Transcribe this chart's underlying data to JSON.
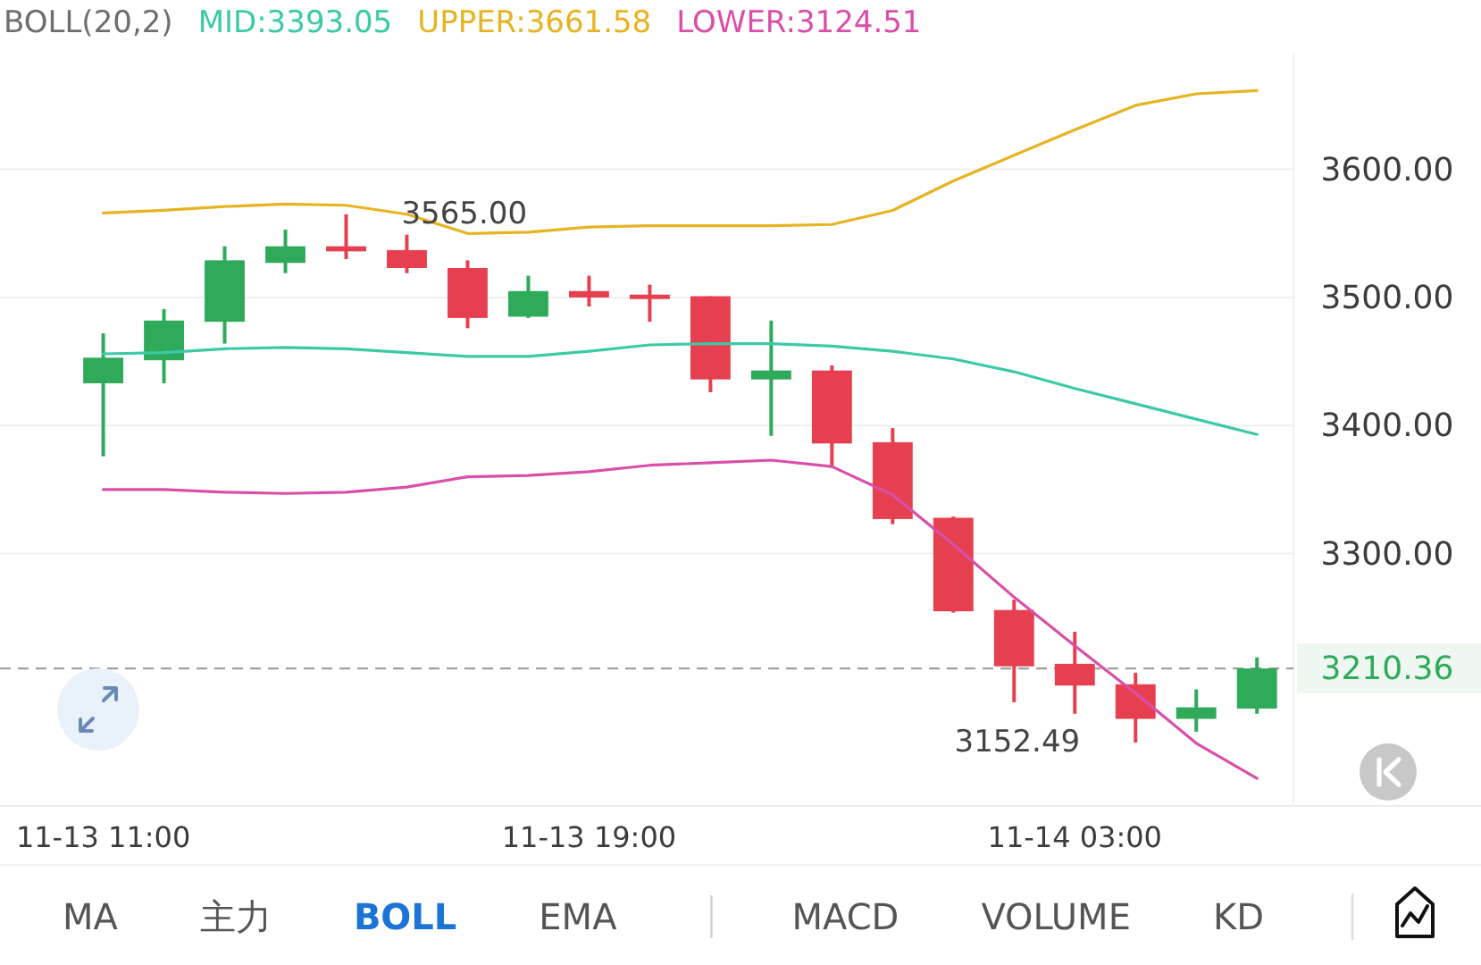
{
  "chart_data": {
    "type": "candlestick",
    "title": "BOLL(20,2)",
    "categories": [
      "11-13 11:00",
      null,
      null,
      null,
      null,
      null,
      null,
      null,
      "11-13 19:00",
      null,
      null,
      null,
      null,
      null,
      null,
      null,
      "11-14 03:00",
      null,
      null,
      null
    ],
    "ylim": [
      3103,
      3690
    ],
    "yticks": [
      {
        "value": 3300,
        "label": "3300.00"
      },
      {
        "value": 3400,
        "label": "3400.00"
      },
      {
        "value": 3500,
        "label": "3500.00"
      },
      {
        "value": 3600,
        "label": "3600.00"
      }
    ],
    "grid": "y",
    "legend": "top",
    "ohlc": [
      [
        3433,
        3472,
        3376,
        3453
      ],
      [
        3451,
        3491,
        3433,
        3482
      ],
      [
        3481,
        3540,
        3464,
        3529
      ],
      [
        3527,
        3553,
        3519,
        3540
      ],
      [
        3540,
        3565.0,
        3530,
        3536
      ],
      [
        3537,
        3549,
        3519,
        3523
      ],
      [
        3523,
        3529,
        3476,
        3484
      ],
      [
        3485,
        3517,
        3484,
        3505
      ],
      [
        3505,
        3517,
        3493,
        3500
      ],
      [
        3501,
        3510,
        3481,
        3500
      ],
      [
        3501,
        3501,
        3426,
        3436
      ],
      [
        3436,
        3482,
        3392,
        3443
      ],
      [
        3443,
        3447,
        3367,
        3386
      ],
      [
        3387,
        3398,
        3323,
        3327
      ],
      [
        3328,
        3329,
        3254,
        3255
      ],
      [
        3256,
        3264,
        3184,
        3212
      ],
      [
        3214,
        3239,
        3175,
        3197
      ],
      [
        3198,
        3207,
        3152.49,
        3171
      ],
      [
        3171,
        3194,
        3161,
        3180
      ],
      [
        3179,
        3219,
        3175,
        3210.36
      ]
    ],
    "colors": [
      "#2eaa5a",
      "#2eaa5a",
      "#2eaa5a",
      "#2eaa5a",
      "#e64050",
      "#e64050",
      "#e64050",
      "#2eaa5a",
      "#e64050",
      "#e64050",
      "#e64050",
      "#2eaa5a",
      "#e64050",
      "#e64050",
      "#e64050",
      "#e64050",
      "#e64050",
      "#e64050",
      "#2eaa5a",
      "#2eaa5a"
    ],
    "series": [
      {
        "name": "MID:3393.05",
        "type": "line",
        "color": "#3cc9a7",
        "values": [
          3456,
          3457,
          3460,
          3461,
          3460,
          3457,
          3454,
          3454,
          3458,
          3463,
          3464,
          3464,
          3462,
          3458,
          3452,
          3442,
          3429,
          3417,
          3405,
          3393.05
        ]
      },
      {
        "name": "UPPER:3661.58",
        "type": "line",
        "color": "#e6b422",
        "values": [
          3566,
          3568,
          3571,
          3573,
          3572,
          3565,
          3550,
          3551,
          3555,
          3556,
          3556,
          3556,
          3557,
          3568,
          3591,
          3611,
          3631,
          3650,
          3659,
          3661.58
        ]
      },
      {
        "name": "LOWER:3124.51",
        "type": "line",
        "color": "#d94fa8",
        "values": [
          3350,
          3350,
          3348,
          3347,
          3348,
          3352,
          3360,
          3361,
          3364,
          3369,
          3371,
          3373,
          3368,
          3346,
          3307,
          3266,
          3228,
          3191,
          3152,
          3124.51
        ]
      }
    ],
    "ref_lines": [
      {
        "axis": "y",
        "value": 3210.36,
        "label": "3210.36",
        "color": "#a0a0a0",
        "line_style": "dashed"
      }
    ],
    "annotations": [
      "3565.00",
      "3152.49",
      "MA",
      "主力",
      "BOLL",
      "EMA",
      "MACD",
      "VOLUME",
      "KD"
    ]
  }
}
